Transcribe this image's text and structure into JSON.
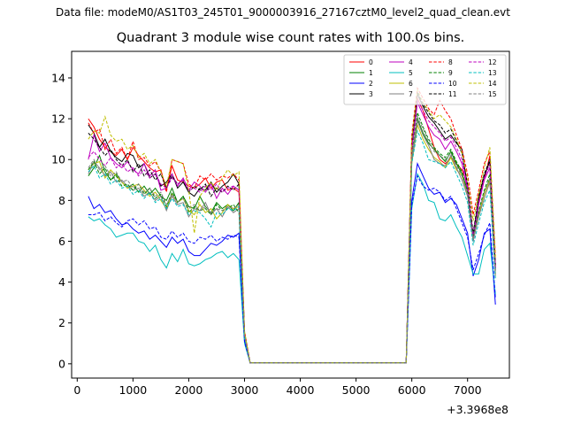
{
  "figure": {
    "suptitle": "Data file: modeM0/AS1T03_245T01_9000003916_27167cztM0_level2_quad_clean.evt",
    "title": "Quadrant 3 module wise count rates with 100.0s bins."
  },
  "chart_data": {
    "type": "line",
    "title": "Quadrant 3 module wise count rates with 100.0s bins.",
    "xlabel": "",
    "ylabel": "",
    "x_offset_label": "+3.3968e8",
    "xlim": [
      -100,
      7750
    ],
    "ylim": [
      -0.7,
      15.3
    ],
    "xticks": [
      0,
      1000,
      2000,
      3000,
      4000,
      5000,
      6000,
      7000
    ],
    "yticks": [
      0,
      2,
      4,
      6,
      8,
      10,
      12,
      14
    ],
    "legend": {
      "position": "top-right",
      "columns": 4
    },
    "x": [
      200,
      300,
      400,
      500,
      600,
      700,
      800,
      900,
      1000,
      1100,
      1200,
      1300,
      1400,
      1500,
      1600,
      1700,
      1800,
      1900,
      2000,
      2100,
      2200,
      2300,
      2400,
      2500,
      2600,
      2700,
      2800,
      2900,
      3000,
      3100,
      3200,
      5800,
      5900,
      6000,
      6100,
      6200,
      6300,
      6400,
      6500,
      6600,
      6700,
      6800,
      6900,
      7000,
      7100,
      7200,
      7300,
      7400,
      7500
    ],
    "series": [
      {
        "name": "0",
        "color": "#ff0000",
        "dash": false,
        "values": [
          12.0,
          11.6,
          11.0,
          10.6,
          10.4,
          10.2,
          10.5,
          10.0,
          10.6,
          10.2,
          9.9,
          9.6,
          9.4,
          9.5,
          8.5,
          9.7,
          9.0,
          8.9,
          8.7,
          8.6,
          8.8,
          9.1,
          8.6,
          8.9,
          9.0,
          8.5,
          8.6,
          8.4,
          1.5,
          0.05,
          0.05,
          0.05,
          0.05,
          10.5,
          13.0,
          12.4,
          11.5,
          10.6,
          10.0,
          9.8,
          10.1,
          9.8,
          9.5,
          8.8,
          6.0,
          8.0,
          9.0,
          10.2,
          4.8
        ]
      },
      {
        "name": "1",
        "color": "#008000",
        "dash": false,
        "values": [
          9.2,
          9.6,
          10.2,
          9.4,
          9.0,
          9.3,
          8.9,
          8.6,
          8.8,
          8.4,
          8.7,
          8.3,
          8.6,
          8.2,
          8.0,
          8.6,
          7.9,
          8.2,
          7.7,
          7.6,
          8.2,
          7.7,
          7.4,
          7.9,
          7.6,
          7.8,
          7.5,
          7.9,
          1.4,
          0.05,
          0.05,
          0.05,
          0.05,
          10.0,
          12.0,
          11.3,
          10.8,
          10.5,
          10.2,
          9.9,
          10.4,
          9.8,
          9.3,
          8.5,
          6.3,
          7.4,
          8.3,
          9.1,
          4.4
        ]
      },
      {
        "name": "2",
        "color": "#0000ff",
        "dash": false,
        "values": [
          8.2,
          7.6,
          7.8,
          7.4,
          7.5,
          7.1,
          6.8,
          6.9,
          6.6,
          6.4,
          6.5,
          6.1,
          6.3,
          6.0,
          5.7,
          6.2,
          5.9,
          6.1,
          5.5,
          5.3,
          5.3,
          5.6,
          5.9,
          5.8,
          6.0,
          6.3,
          6.2,
          6.4,
          1.1,
          0.05,
          0.05,
          0.05,
          0.05,
          8.0,
          9.8,
          9.2,
          8.6,
          8.3,
          8.4,
          7.9,
          8.1,
          7.8,
          7.1,
          6.4,
          4.3,
          5.1,
          6.4,
          6.6,
          2.9
        ]
      },
      {
        "name": "3",
        "color": "#000000",
        "dash": false,
        "values": [
          11.7,
          11.3,
          10.6,
          11.0,
          10.4,
          10.1,
          9.9,
          10.3,
          10.2,
          9.6,
          9.8,
          9.1,
          9.3,
          8.7,
          8.9,
          9.3,
          8.6,
          8.9,
          8.4,
          8.2,
          8.6,
          8.5,
          8.9,
          8.4,
          8.7,
          8.9,
          9.3,
          8.8,
          1.5,
          0.05,
          0.05,
          0.05,
          0.05,
          10.8,
          13.2,
          12.6,
          12.1,
          11.8,
          11.4,
          11.0,
          11.2,
          10.8,
          10.5,
          8.6,
          6.3,
          8.1,
          9.2,
          9.9,
          4.7
        ]
      },
      {
        "name": "4",
        "color": "#bf00bf",
        "dash": false,
        "values": [
          10.0,
          11.2,
          10.4,
          10.8,
          10.1,
          9.8,
          9.6,
          9.9,
          9.5,
          9.3,
          9.8,
          9.2,
          9.5,
          8.5,
          8.6,
          9.3,
          8.7,
          9.1,
          8.5,
          8.9,
          8.7,
          8.4,
          8.8,
          8.1,
          8.6,
          8.3,
          8.7,
          8.5,
          1.5,
          0.05,
          0.05,
          0.05,
          0.05,
          10.4,
          12.8,
          12.2,
          11.6,
          11.2,
          11.0,
          10.5,
          10.9,
          10.4,
          9.8,
          8.5,
          6.0,
          7.8,
          9.0,
          9.6,
          4.6
        ]
      },
      {
        "name": "5",
        "color": "#00bfbf",
        "dash": false,
        "values": [
          7.2,
          7.0,
          7.1,
          6.8,
          6.6,
          6.2,
          6.3,
          6.4,
          6.4,
          6.0,
          5.9,
          5.5,
          5.8,
          5.1,
          4.7,
          5.4,
          5.0,
          5.6,
          4.9,
          4.8,
          4.9,
          5.1,
          5.2,
          5.4,
          5.5,
          5.2,
          5.4,
          5.1,
          1.0,
          0.05,
          0.05,
          0.05,
          0.05,
          7.6,
          9.3,
          8.8,
          8.0,
          7.9,
          7.1,
          7.0,
          7.3,
          6.7,
          6.2,
          5.3,
          4.4,
          4.4,
          5.6,
          5.9,
          3.4
        ]
      },
      {
        "name": "6",
        "color": "#bfbf00",
        "dash": false,
        "values": [
          9.5,
          9.8,
          9.9,
          9.1,
          9.5,
          9.2,
          8.9,
          8.6,
          8.7,
          8.8,
          8.5,
          8.2,
          8.4,
          8.0,
          7.6,
          8.3,
          7.9,
          8.1,
          7.5,
          7.3,
          7.8,
          7.4,
          7.6,
          7.1,
          7.4,
          7.8,
          7.6,
          7.7,
          1.4,
          0.05,
          0.05,
          0.05,
          0.05,
          9.8,
          11.7,
          11.0,
          10.5,
          10.1,
          9.9,
          9.6,
          10.1,
          9.5,
          9.2,
          8.3,
          6.1,
          7.3,
          8.3,
          9.0,
          4.3
        ]
      },
      {
        "name": "7",
        "color": "#808080",
        "dash": false,
        "values": [
          9.3,
          9.9,
          9.6,
          9.2,
          9.4,
          8.9,
          9.0,
          8.7,
          8.5,
          8.6,
          8.2,
          8.4,
          8.0,
          8.2,
          7.5,
          8.2,
          7.8,
          7.9,
          7.2,
          7.6,
          7.5,
          7.9,
          7.3,
          7.6,
          7.2,
          7.7,
          7.4,
          7.6,
          1.4,
          0.05,
          0.05,
          0.05,
          0.05,
          9.9,
          11.9,
          11.2,
          10.7,
          10.0,
          9.8,
          9.7,
          10.2,
          9.6,
          9.0,
          8.2,
          6.0,
          7.2,
          8.1,
          8.9,
          4.2
        ]
      },
      {
        "name": "8",
        "color": "#ff0000",
        "dash": true,
        "values": [
          11.8,
          11.3,
          11.5,
          10.5,
          11.0,
          10.3,
          10.6,
          10.0,
          10.9,
          10.0,
          10.1,
          9.7,
          9.9,
          9.4,
          8.4,
          10.0,
          9.9,
          9.8,
          8.8,
          8.6,
          9.2,
          9.0,
          9.3,
          9.0,
          9.2,
          9.1,
          9.3,
          9.0,
          1.6,
          0.05,
          0.05,
          0.05,
          0.05,
          11.2,
          13.5,
          13.0,
          12.5,
          12.2,
          12.9,
          12.4,
          12.0,
          11.2,
          10.5,
          9.3,
          7.3,
          8.5,
          9.8,
          10.4,
          5.3
        ]
      },
      {
        "name": "9",
        "color": "#008000",
        "dash": true,
        "values": [
          9.5,
          9.9,
          9.3,
          9.6,
          9.0,
          9.2,
          8.7,
          8.8,
          8.5,
          8.8,
          8.3,
          8.6,
          8.1,
          8.3,
          7.7,
          8.4,
          7.9,
          8.2,
          7.4,
          7.7,
          7.5,
          7.6,
          7.3,
          7.8,
          7.5,
          7.6,
          7.8,
          7.4,
          1.4,
          0.05,
          0.05,
          0.05,
          0.05,
          10.2,
          12.3,
          11.6,
          11.0,
          10.6,
          10.3,
          10.1,
          10.5,
          9.9,
          9.4,
          8.4,
          6.2,
          7.5,
          8.5,
          9.3,
          4.5
        ]
      },
      {
        "name": "10",
        "color": "#0000ff",
        "dash": true,
        "values": [
          7.3,
          7.3,
          7.4,
          7.0,
          7.2,
          6.9,
          6.7,
          7.0,
          7.1,
          6.8,
          7.0,
          6.6,
          6.7,
          6.2,
          6.1,
          6.5,
          6.2,
          6.4,
          6.0,
          5.9,
          6.2,
          6.1,
          6.3,
          6.0,
          6.2,
          6.1,
          6.3,
          6.2,
          1.1,
          0.05,
          0.05,
          0.05,
          0.05,
          7.8,
          9.2,
          8.7,
          8.5,
          8.6,
          8.4,
          8.0,
          8.2,
          7.6,
          6.9,
          6.2,
          4.6,
          5.4,
          6.3,
          6.9,
          3.2
        ]
      },
      {
        "name": "11",
        "color": "#000000",
        "dash": true,
        "values": [
          11.3,
          11.0,
          10.6,
          10.2,
          10.5,
          10.0,
          9.7,
          10.0,
          9.4,
          9.8,
          9.2,
          9.5,
          9.0,
          9.3,
          8.6,
          9.2,
          8.8,
          9.0,
          8.4,
          8.7,
          8.5,
          8.8,
          8.2,
          8.6,
          8.4,
          8.7,
          8.5,
          8.8,
          1.5,
          0.05,
          0.05,
          0.05,
          0.05,
          10.9,
          13.3,
          12.7,
          12.3,
          11.9,
          11.7,
          11.3,
          11.5,
          10.9,
          10.3,
          8.8,
          6.4,
          8.2,
          9.3,
          10.0,
          4.8
        ]
      },
      {
        "name": "12",
        "color": "#bf00bf",
        "dash": true,
        "values": [
          10.1,
          10.4,
          10.0,
          9.7,
          10.1,
          9.6,
          9.8,
          9.4,
          9.6,
          9.2,
          9.5,
          9.1,
          9.3,
          8.8,
          8.6,
          9.1,
          8.8,
          9.0,
          8.5,
          8.6,
          8.4,
          8.7,
          8.5,
          8.8,
          8.4,
          8.6,
          8.7,
          8.5,
          1.5,
          0.05,
          0.05,
          0.05,
          0.05,
          10.6,
          12.9,
          12.4,
          11.9,
          11.6,
          11.3,
          10.9,
          11.1,
          10.6,
          10.0,
          8.7,
          6.2,
          7.9,
          9.1,
          9.8,
          4.7
        ]
      },
      {
        "name": "13",
        "color": "#00bfbf",
        "dash": true,
        "values": [
          9.4,
          9.7,
          9.1,
          9.3,
          8.8,
          9.0,
          8.6,
          8.7,
          8.3,
          8.5,
          8.1,
          8.4,
          7.9,
          8.1,
          7.6,
          8.1,
          7.7,
          7.8,
          7.3,
          7.5,
          7.4,
          7.1,
          6.7,
          7.4,
          7.3,
          7.6,
          7.5,
          7.7,
          1.4,
          0.05,
          0.05,
          0.05,
          0.05,
          9.8,
          11.4,
          10.8,
          10.0,
          9.9,
          9.8,
          9.6,
          9.9,
          9.3,
          8.7,
          7.9,
          5.8,
          6.9,
          7.9,
          8.5,
          4.1
        ]
      },
      {
        "name": "14",
        "color": "#bfbf00",
        "dash": true,
        "values": [
          11.0,
          11.4,
          11.3,
          12.1,
          11.2,
          10.9,
          11.0,
          10.5,
          10.7,
          10.1,
          10.3,
          9.8,
          10.0,
          9.4,
          8.7,
          10.0,
          9.9,
          9.8,
          8.5,
          6.4,
          8.2,
          8.6,
          8.9,
          8.5,
          9.1,
          9.5,
          9.2,
          9.4,
          1.6,
          0.05,
          0.05,
          0.05,
          0.05,
          11.0,
          13.4,
          12.8,
          12.4,
          12.0,
          12.2,
          11.9,
          11.6,
          11.0,
          10.3,
          9.1,
          7.0,
          8.3,
          9.6,
          10.6,
          5.2
        ]
      },
      {
        "name": "15",
        "color": "#808080",
        "dash": true,
        "values": [
          9.6,
          10.0,
          9.5,
          9.7,
          9.2,
          9.4,
          8.9,
          9.0,
          8.6,
          8.8,
          8.4,
          8.6,
          8.2,
          8.4,
          7.8,
          8.3,
          7.9,
          8.1,
          7.6,
          7.8,
          7.5,
          7.7,
          7.4,
          7.6,
          7.5,
          7.7,
          7.6,
          7.8,
          1.4,
          0.05,
          0.05,
          0.05,
          0.05,
          10.1,
          12.1,
          11.5,
          10.9,
          10.4,
          10.2,
          10.0,
          10.3,
          9.7,
          9.2,
          8.3,
          6.1,
          7.4,
          8.4,
          9.1,
          4.4
        ]
      }
    ]
  }
}
